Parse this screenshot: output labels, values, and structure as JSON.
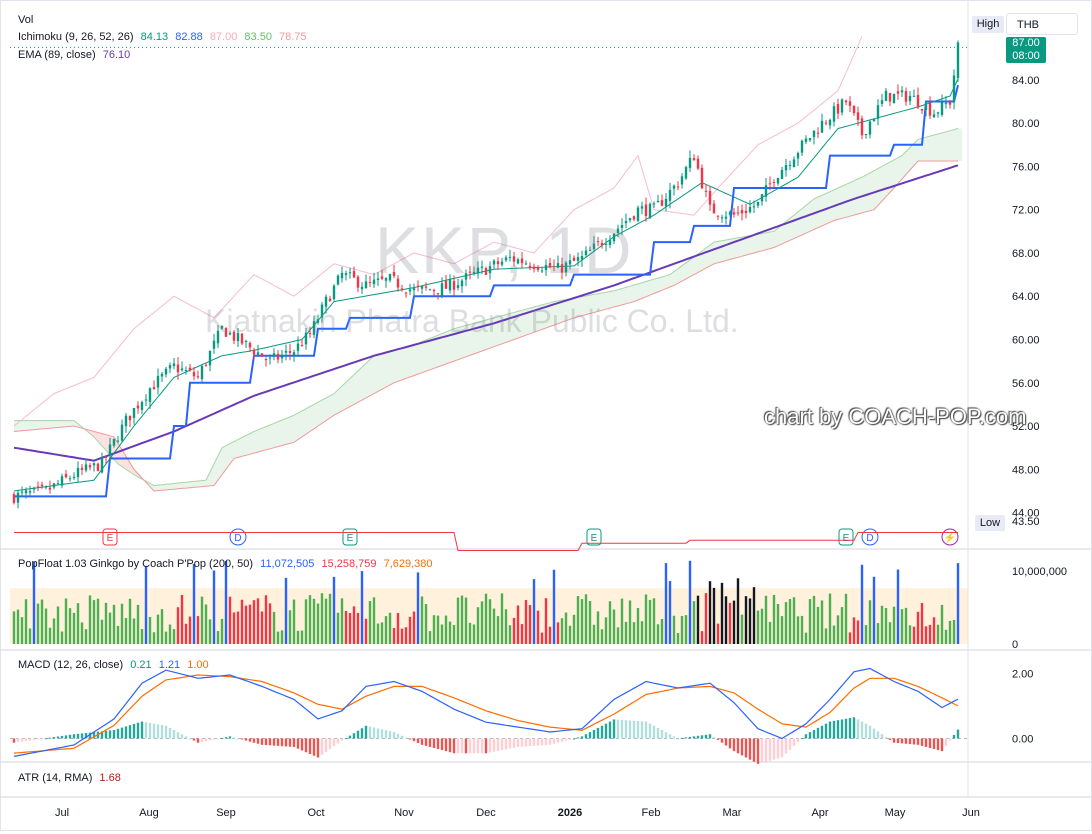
{
  "chart_data": [
    {
      "type": "candlestick",
      "title": "KKP, 1D",
      "subtitle": "Kiatnakin Phatra Bank Public Co. Ltd.",
      "ylim": [
        43.5,
        87.5
      ],
      "y_ticks": [
        "84.00",
        "80.00",
        "76.00",
        "72.00",
        "68.00",
        "64.00",
        "60.00",
        "56.00",
        "52.00",
        "48.00",
        "44.00"
      ],
      "x_ticks": [
        "Jul",
        "Aug",
        "Sep",
        "Oct",
        "Nov",
        "Dec",
        "2026",
        "Feb",
        "Mar",
        "Apr",
        "May",
        "Jun"
      ],
      "currency": "THB",
      "last_price": "87.00",
      "countdown": "08:00",
      "high_label": "High",
      "low_label": "Low",
      "low_value": "43.50",
      "legend": {
        "vol": "Vol",
        "ichimoku_name": "Ichimoku (9, 26, 52, 26)",
        "ichimoku_values": [
          "84.13",
          "82.88",
          "87.00",
          "83.50",
          "78.75"
        ],
        "ema_name": "EMA (89, close)",
        "ema_value": "76.10"
      },
      "close_path": [
        [
          0,
          45.5
        ],
        [
          8,
          46.0
        ],
        [
          15,
          47.5
        ],
        [
          22,
          48.5
        ],
        [
          28,
          52.5
        ],
        [
          34,
          55.5
        ],
        [
          40,
          57.5
        ],
        [
          46,
          56.5
        ],
        [
          52,
          61.0
        ],
        [
          58,
          59.5
        ],
        [
          64,
          58.0
        ],
        [
          70,
          59.0
        ],
        [
          74,
          60.5
        ],
        [
          78,
          63.5
        ],
        [
          82,
          66.0
        ],
        [
          88,
          65.0
        ],
        [
          94,
          65.5
        ],
        [
          100,
          64.5
        ],
        [
          108,
          64.8
        ],
        [
          116,
          66.2
        ],
        [
          124,
          67.5
        ],
        [
          130,
          67.0
        ],
        [
          136,
          66.5
        ],
        [
          142,
          67.5
        ],
        [
          150,
          70.0
        ],
        [
          156,
          72.0
        ],
        [
          160,
          72.0
        ],
        [
          166,
          74.5
        ],
        [
          170,
          77.0
        ],
        [
          174,
          72.0
        ],
        [
          180,
          71.5
        ],
        [
          186,
          72.5
        ],
        [
          190,
          75.0
        ],
        [
          196,
          77.5
        ],
        [
          202,
          80.0
        ],
        [
          208,
          82.0
        ],
        [
          212,
          79.0
        ],
        [
          218,
          82.5
        ],
        [
          224,
          82.5
        ],
        [
          230,
          81.0
        ],
        [
          234,
          82.0
        ],
        [
          236,
          87.0
        ]
      ],
      "ema_path": [
        [
          0,
          50.0
        ],
        [
          20,
          48.8
        ],
        [
          40,
          51.5
        ],
        [
          60,
          54.8
        ],
        [
          90,
          58.5
        ],
        [
          120,
          61.5
        ],
        [
          150,
          65.0
        ],
        [
          180,
          69.0
        ],
        [
          210,
          73.0
        ],
        [
          236,
          76.1
        ]
      ],
      "base_path": [
        [
          0,
          45.5
        ],
        [
          20,
          45.5
        ],
        [
          24,
          49.0
        ],
        [
          40,
          52.0
        ],
        [
          44,
          56.0
        ],
        [
          60,
          58.5
        ],
        [
          76,
          61.0
        ],
        [
          84,
          62.0
        ],
        [
          100,
          64.0
        ],
        [
          120,
          65.0
        ],
        [
          140,
          66.0
        ],
        [
          160,
          69.0
        ],
        [
          170,
          70.5
        ],
        [
          180,
          74.0
        ],
        [
          200,
          74.0
        ],
        [
          204,
          77.0
        ],
        [
          220,
          78.0
        ],
        [
          228,
          82.0
        ],
        [
          236,
          83.5
        ]
      ],
      "conversion_path": [
        [
          0,
          46.0
        ],
        [
          20,
          47.0
        ],
        [
          30,
          52.0
        ],
        [
          40,
          56.5
        ],
        [
          52,
          58.5
        ],
        [
          60,
          59.0
        ],
        [
          72,
          60.0
        ],
        [
          80,
          63.5
        ],
        [
          100,
          64.8
        ],
        [
          120,
          66.5
        ],
        [
          140,
          66.8
        ],
        [
          150,
          69.5
        ],
        [
          160,
          71.5
        ],
        [
          168,
          73.5
        ],
        [
          172,
          74.5
        ],
        [
          184,
          72.5
        ],
        [
          196,
          75.0
        ],
        [
          206,
          79.5
        ],
        [
          216,
          80.5
        ],
        [
          226,
          81.5
        ],
        [
          234,
          82.5
        ],
        [
          236,
          84.1
        ]
      ],
      "lagging_path": [
        [
          0,
          52.0
        ],
        [
          10,
          55.0
        ],
        [
          20,
          56.5
        ],
        [
          30,
          61.0
        ],
        [
          40,
          64.0
        ],
        [
          50,
          62.0
        ],
        [
          60,
          66.0
        ],
        [
          70,
          64.0
        ],
        [
          80,
          67.0
        ],
        [
          90,
          66.0
        ],
        [
          100,
          68.0
        ],
        [
          110,
          67.0
        ],
        [
          120,
          69.0
        ],
        [
          130,
          68.0
        ],
        [
          140,
          72.0
        ],
        [
          150,
          74.0
        ],
        [
          156,
          77.0
        ],
        [
          160,
          72.0
        ],
        [
          170,
          71.5
        ],
        [
          176,
          74.0
        ],
        [
          186,
          78.0
        ],
        [
          196,
          80.0
        ],
        [
          206,
          83.0
        ],
        [
          212,
          88.0
        ]
      ],
      "cloud_a": [
        [
          0,
          52.5
        ],
        [
          15,
          52.5
        ],
        [
          20,
          51.0
        ],
        [
          26,
          48.5
        ],
        [
          30,
          47.5
        ],
        [
          35,
          46.5
        ],
        [
          48,
          47.0
        ],
        [
          52,
          50.0
        ],
        [
          60,
          51.5
        ],
        [
          70,
          53.0
        ],
        [
          80,
          55.0
        ],
        [
          90,
          58.5
        ],
        [
          100,
          59.5
        ],
        [
          110,
          61.0
        ],
        [
          120,
          62.0
        ],
        [
          135,
          63.5
        ],
        [
          150,
          64.5
        ],
        [
          164,
          66.0
        ],
        [
          175,
          69.0
        ],
        [
          190,
          70.0
        ],
        [
          200,
          73.0
        ],
        [
          212,
          75.0
        ],
        [
          222,
          77.0
        ],
        [
          226,
          78.5
        ],
        [
          236,
          79.5
        ]
      ],
      "cloud_b": [
        [
          0,
          51.5
        ],
        [
          15,
          52.0
        ],
        [
          25,
          51.0
        ],
        [
          30,
          48.0
        ],
        [
          35,
          46.0
        ],
        [
          50,
          46.5
        ],
        [
          55,
          49.0
        ],
        [
          70,
          50.5
        ],
        [
          80,
          53.0
        ],
        [
          95,
          56.0
        ],
        [
          110,
          58.0
        ],
        [
          125,
          60.0
        ],
        [
          140,
          62.0
        ],
        [
          155,
          63.5
        ],
        [
          165,
          65.0
        ],
        [
          175,
          67.0
        ],
        [
          190,
          68.5
        ],
        [
          205,
          71.0
        ],
        [
          215,
          72.0
        ],
        [
          220,
          74.0
        ],
        [
          226,
          76.5
        ],
        [
          236,
          76.5
        ]
      ],
      "event_markers": [
        {
          "pos": 24,
          "label": "E",
          "color": "#f23645"
        },
        {
          "pos": 56,
          "label": "D",
          "color": "#2962ff"
        },
        {
          "pos": 84,
          "label": "E",
          "color": "#089981"
        },
        {
          "pos": 145,
          "label": "E",
          "color": "#089981"
        },
        {
          "pos": 208,
          "label": "E",
          "color": "#089981"
        },
        {
          "pos": 214,
          "label": "D",
          "color": "#2962ff"
        },
        {
          "pos": 234,
          "label": "⚡",
          "color": "#9c27b0"
        }
      ]
    },
    {
      "type": "bar",
      "title": "PopFloat 1.03 Ginkgo by Coach P'Pop (200, 50)",
      "legend_values": [
        "11,072,505",
        "15,258,759",
        "7,629,380"
      ],
      "y_ticks": [
        "10,000,000",
        "0"
      ],
      "ylim": [
        0,
        11500000
      ],
      "volume_seed": 7
    },
    {
      "type": "line",
      "title": "MACD (12, 26, close)",
      "legend_values": [
        "0.21",
        "1.21",
        "1.00"
      ],
      "y_ticks": [
        "2.00",
        "0.00"
      ],
      "ylim": [
        -0.6,
        2.35
      ],
      "macd_path": [
        [
          0,
          -0.55
        ],
        [
          15,
          -0.2
        ],
        [
          25,
          0.6
        ],
        [
          32,
          1.7
        ],
        [
          38,
          2.1
        ],
        [
          46,
          1.85
        ],
        [
          54,
          1.95
        ],
        [
          62,
          1.6
        ],
        [
          70,
          1.2
        ],
        [
          76,
          0.6
        ],
        [
          82,
          0.85
        ],
        [
          88,
          1.6
        ],
        [
          95,
          1.75
        ],
        [
          102,
          1.45
        ],
        [
          110,
          0.9
        ],
        [
          118,
          0.5
        ],
        [
          126,
          0.35
        ],
        [
          134,
          0.2
        ],
        [
          142,
          0.3
        ],
        [
          150,
          1.2
        ],
        [
          158,
          1.75
        ],
        [
          166,
          1.55
        ],
        [
          174,
          1.7
        ],
        [
          180,
          1.1
        ],
        [
          186,
          0.3
        ],
        [
          192,
          0.0
        ],
        [
          198,
          0.45
        ],
        [
          204,
          1.2
        ],
        [
          210,
          2.05
        ],
        [
          214,
          2.15
        ],
        [
          220,
          1.75
        ],
        [
          226,
          1.45
        ],
        [
          232,
          0.95
        ],
        [
          236,
          1.21
        ]
      ],
      "signal_path": [
        [
          0,
          -0.45
        ],
        [
          15,
          -0.3
        ],
        [
          25,
          0.4
        ],
        [
          32,
          1.3
        ],
        [
          38,
          1.8
        ],
        [
          46,
          1.95
        ],
        [
          54,
          1.9
        ],
        [
          62,
          1.75
        ],
        [
          70,
          1.4
        ],
        [
          76,
          1.05
        ],
        [
          82,
          0.9
        ],
        [
          88,
          1.3
        ],
        [
          95,
          1.6
        ],
        [
          102,
          1.6
        ],
        [
          110,
          1.25
        ],
        [
          118,
          0.85
        ],
        [
          126,
          0.55
        ],
        [
          134,
          0.35
        ],
        [
          142,
          0.25
        ],
        [
          150,
          0.75
        ],
        [
          158,
          1.35
        ],
        [
          166,
          1.55
        ],
        [
          174,
          1.6
        ],
        [
          180,
          1.4
        ],
        [
          186,
          0.9
        ],
        [
          192,
          0.45
        ],
        [
          198,
          0.35
        ],
        [
          204,
          0.8
        ],
        [
          210,
          1.55
        ],
        [
          214,
          1.85
        ],
        [
          220,
          1.85
        ],
        [
          226,
          1.6
        ],
        [
          232,
          1.25
        ],
        [
          236,
          1.0
        ]
      ]
    },
    {
      "type": "line",
      "title": "ATR (14, RMA)",
      "legend_values": [
        "1.68"
      ]
    }
  ],
  "watermark": {
    "symbol": "KKP, 1D",
    "name": "Kiatnakin Phatra Bank Public Co. Ltd.",
    "credit": "chart by COACH-POP.com"
  }
}
